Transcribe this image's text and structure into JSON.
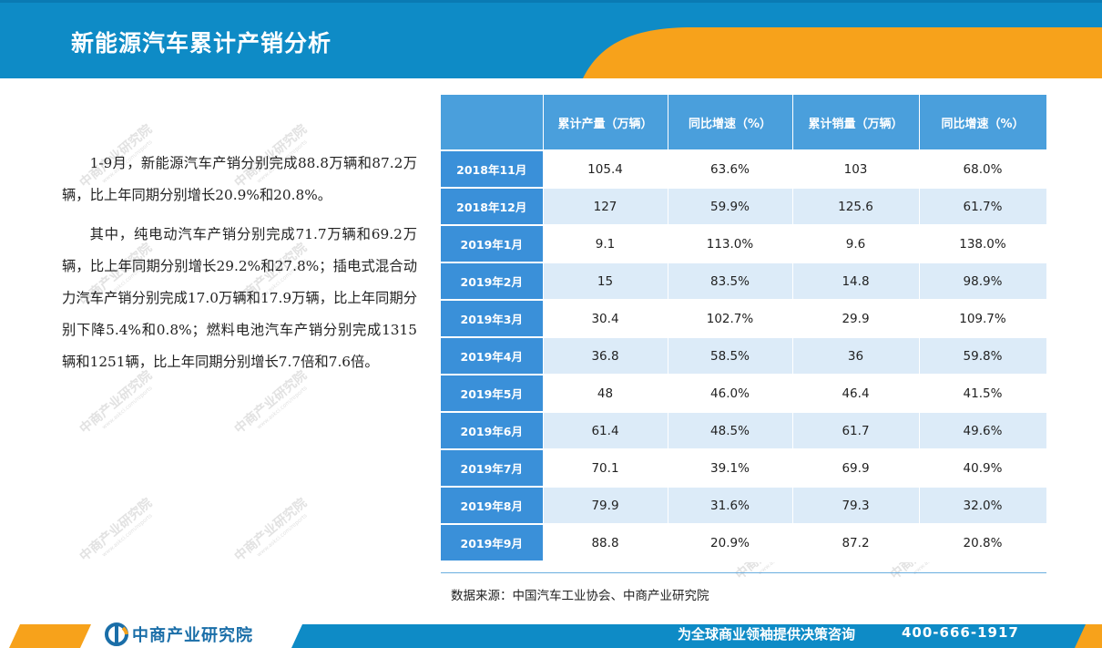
{
  "title": "新能源汽车累计产销分析",
  "intro": {
    "p1": "1-9月，新能源汽车产销分别完成88.8万辆和87.2万辆，比上年同期分别增长20.9%和20.8%。",
    "p2": "其中，纯电动汽车产销分别完成71.7万辆和69.2万辆，比上年同期分别增长29.2%和27.8%；插电式混合动力汽车产销分别完成17.0万辆和17.9万辆，比上年同期分别下降5.4%和0.8%；燃料电池汽车产销分别完成1315辆和1251辆，比上年同期分别增长7.7倍和7.6倍。"
  },
  "table": {
    "headers": [
      "",
      "累计产量（万辆）",
      "同比增速（%）",
      "累计销量（万辆）",
      "同比增速（%）"
    ],
    "rows": [
      {
        "month": "2018年11月",
        "production": "105.4",
        "production_yoy": "63.6%",
        "sales": "103",
        "sales_yoy": "68.0%"
      },
      {
        "month": "2018年12月",
        "production": "127",
        "production_yoy": "59.9%",
        "sales": "125.6",
        "sales_yoy": "61.7%"
      },
      {
        "month": "2019年1月",
        "production": "9.1",
        "production_yoy": "113.0%",
        "sales": "9.6",
        "sales_yoy": "138.0%"
      },
      {
        "month": "2019年2月",
        "production": "15",
        "production_yoy": "83.5%",
        "sales": "14.8",
        "sales_yoy": "98.9%"
      },
      {
        "month": "2019年3月",
        "production": "30.4",
        "production_yoy": "102.7%",
        "sales": "29.9",
        "sales_yoy": "109.7%"
      },
      {
        "month": "2019年4月",
        "production": "36.8",
        "production_yoy": "58.5%",
        "sales": "36",
        "sales_yoy": "59.8%"
      },
      {
        "month": "2019年5月",
        "production": "48",
        "production_yoy": "46.0%",
        "sales": "46.4",
        "sales_yoy": "41.5%"
      },
      {
        "month": "2019年6月",
        "production": "61.4",
        "production_yoy": "48.5%",
        "sales": "61.7",
        "sales_yoy": "49.6%"
      },
      {
        "month": "2019年7月",
        "production": "70.1",
        "production_yoy": "39.1%",
        "sales": "69.9",
        "sales_yoy": "40.9%"
      },
      {
        "month": "2019年8月",
        "production": "79.9",
        "production_yoy": "31.6%",
        "sales": "79.3",
        "sales_yoy": "32.0%"
      },
      {
        "month": "2019年9月",
        "production": "88.8",
        "production_yoy": "20.9%",
        "sales": "87.2",
        "sales_yoy": "20.8%"
      }
    ]
  },
  "source": "数据来源：中国汽车工业协会、中商产业研究院",
  "footer": {
    "logo_text": "中商产业研究院",
    "slogan": "为全球商业领袖提供决策咨询",
    "phone": "400-666-1917"
  },
  "watermark": {
    "name": "中商产业研究院",
    "url": "www.askci.com/reports"
  },
  "colors": {
    "header_blue": "#0e8bc6",
    "accent_orange": "#f7a21b",
    "table_header_blue": "#4a9fdc",
    "table_row_blue": "#dcebf8",
    "logo_blue": "#1a6ea8"
  }
}
